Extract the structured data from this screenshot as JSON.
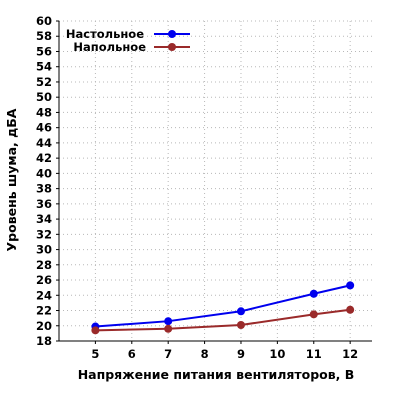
{
  "chart_data": {
    "type": "line",
    "xlabel": "Напряжение питания вентиляторов, В",
    "ylabel": "Уровень шума, дБА",
    "xlim": [
      4,
      12.6
    ],
    "ylim": [
      18,
      60
    ],
    "xticks": [
      5,
      6,
      7,
      8,
      9,
      10,
      11,
      12
    ],
    "yticks": [
      18,
      20,
      22,
      24,
      26,
      28,
      30,
      32,
      34,
      36,
      38,
      40,
      42,
      44,
      46,
      48,
      50,
      52,
      54,
      56,
      58,
      60
    ],
    "grid": true,
    "legend_position": "top-left",
    "series": [
      {
        "name": "Настольное",
        "color": "#0000ee",
        "x": [
          5,
          7,
          9,
          11,
          12
        ],
        "y": [
          19.9,
          20.6,
          21.9,
          24.2,
          25.3
        ]
      },
      {
        "name": "Напольное",
        "color": "#9a2a2a",
        "x": [
          5,
          7,
          9,
          11,
          12
        ],
        "y": [
          19.4,
          19.6,
          20.1,
          21.5,
          22.1
        ]
      }
    ]
  }
}
